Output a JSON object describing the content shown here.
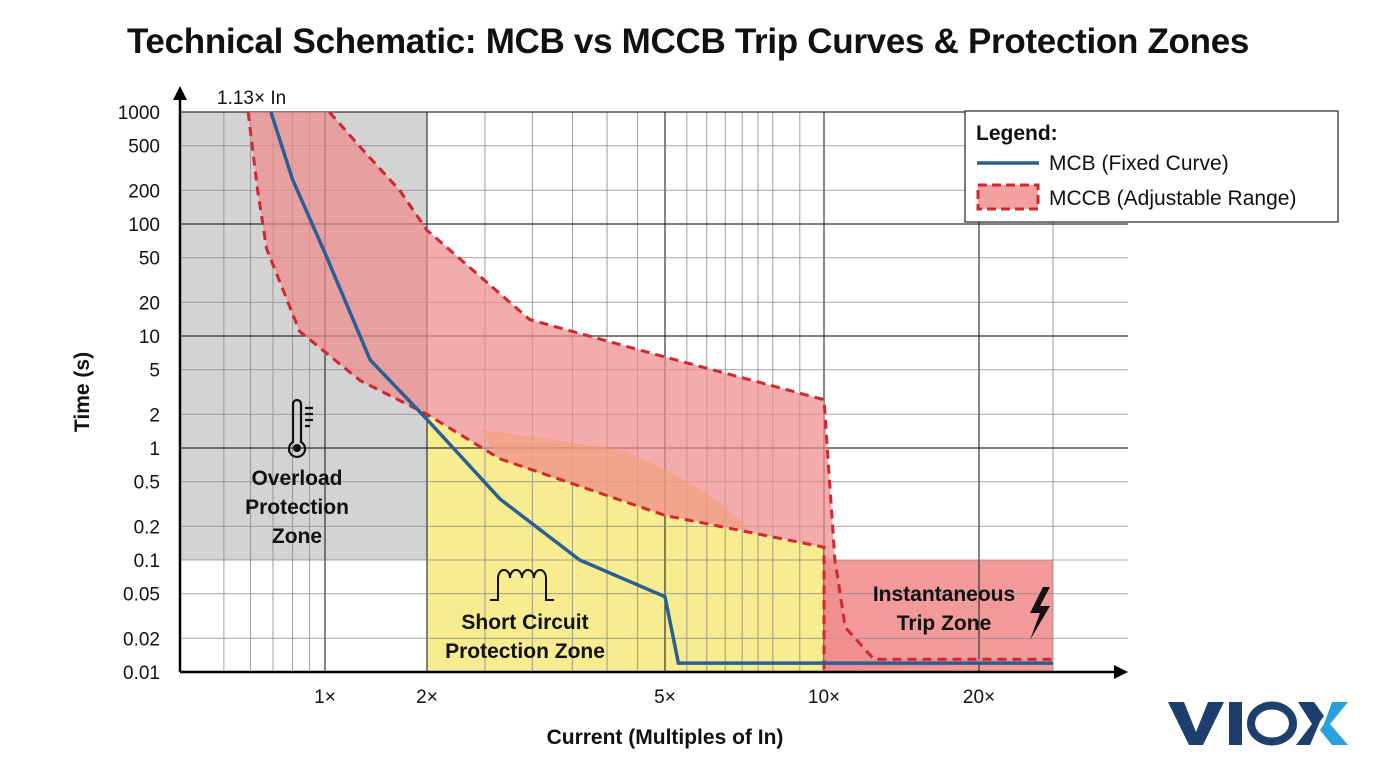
{
  "chart_data": {
    "type": "line",
    "title": "Technical Schematic: MCB vs MCCB Trip Curves & Protection Zones",
    "xlabel": "Current (Multiples of In)",
    "ylabel": "Time (s)",
    "x_scale": "log",
    "y_scale": "log",
    "xlim": [
      0.37,
      30
    ],
    "ylim": [
      0.01,
      1000
    ],
    "grid": true,
    "x_ticks": [
      {
        "v": 1,
        "label": "1×"
      },
      {
        "v": 2,
        "label": "2×"
      },
      {
        "v": 5,
        "label": "5×"
      },
      {
        "v": 10,
        "label": "10×"
      },
      {
        "v": 20,
        "label": "20×"
      }
    ],
    "y_ticks": [
      {
        "v": 1000,
        "label": "1000"
      },
      {
        "v": 500,
        "label": "500"
      },
      {
        "v": 200,
        "label": "200"
      },
      {
        "v": 100,
        "label": "100"
      },
      {
        "v": 50,
        "label": "50"
      },
      {
        "v": 20,
        "label": "20"
      },
      {
        "v": 10,
        "label": "10"
      },
      {
        "v": 5,
        "label": "5"
      },
      {
        "v": 2,
        "label": "2"
      },
      {
        "v": 1,
        "label": "1"
      },
      {
        "v": 0.5,
        "label": "0.5"
      },
      {
        "v": 0.2,
        "label": "0.2"
      },
      {
        "v": 0.1,
        "label": "0.1"
      },
      {
        "v": 0.05,
        "label": "0.05"
      },
      {
        "v": 0.02,
        "label": "0.02"
      },
      {
        "v": 0.01,
        "label": "0.01"
      }
    ],
    "annotation_top": "1.13× In",
    "legend": {
      "title": "Legend:",
      "position": "top-right"
    },
    "series": [
      {
        "name": "MCB (Fixed Curve)",
        "color": "#2a5f93",
        "style": "solid",
        "points": [
          [
            0.69,
            1000
          ],
          [
            0.8,
            250
          ],
          [
            1,
            55
          ],
          [
            1.36,
            6.1
          ],
          [
            2,
            1.8
          ],
          [
            2.65,
            0.35
          ],
          [
            3.6,
            0.1
          ],
          [
            5,
            0.047
          ],
          [
            5.3,
            0.012
          ],
          [
            30,
            0.012
          ]
        ]
      },
      {
        "name": "MCCB (Adjustable Range)",
        "color": "#d0282e",
        "fill": "#f08a8a",
        "style": "dashed-band",
        "upper": [
          [
            1.03,
            1000
          ],
          [
            1.3,
            450
          ],
          [
            1.66,
            200
          ],
          [
            2,
            88
          ],
          [
            2.97,
            14
          ],
          [
            5,
            6.5
          ],
          [
            10,
            2.7
          ],
          [
            10.5,
            0.1
          ],
          [
            11,
            0.025
          ],
          [
            12.5,
            0.013
          ],
          [
            30,
            0.013
          ]
        ],
        "lower": [
          [
            0.59,
            1000
          ],
          [
            0.63,
            200
          ],
          [
            0.67,
            60
          ],
          [
            0.84,
            11
          ],
          [
            1.27,
            4
          ],
          [
            2,
            2
          ],
          [
            2.65,
            0.8
          ],
          [
            5,
            0.25
          ],
          [
            10,
            0.13
          ],
          [
            10,
            0.01
          ]
        ]
      }
    ],
    "zones": [
      {
        "label": [
          "Overload",
          "Protection",
          "Zone"
        ],
        "icon": "thermometer-icon",
        "color": "#d3d3d3",
        "x": [
          0.37,
          2
        ],
        "y": [
          0.1,
          1000
        ]
      },
      {
        "label": [
          "Short Circuit",
          "Protection Zone"
        ],
        "icon": "inductor-coil-icon",
        "color": "#f7ec8f",
        "x": [
          2,
          10
        ],
        "y": [
          0.01,
          "MCCB lower"
        ]
      },
      {
        "label": [
          "Instantaneous",
          "Trip Zone"
        ],
        "icon": "lightning-icon",
        "color": "#f29a9a",
        "x": [
          10,
          30
        ],
        "y": [
          0.01,
          0.1
        ]
      }
    ]
  },
  "logo": {
    "text": "VIOX",
    "colors": [
      "#1d3f6e",
      "#2aa0dc"
    ]
  }
}
